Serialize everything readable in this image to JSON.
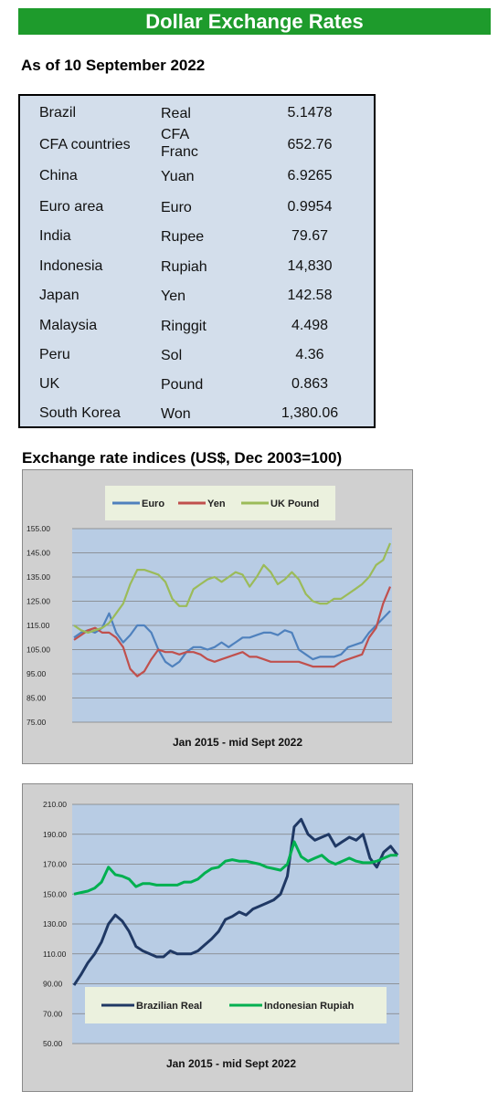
{
  "header": {
    "title": "Dollar Exchange Rates",
    "as_of": "As of 10 September 2022"
  },
  "rates": [
    {
      "country": "Brazil",
      "currency": "Real",
      "value": "5.1478"
    },
    {
      "country": "CFA countries",
      "currency": "CFA Franc",
      "value": "652.76"
    },
    {
      "country": "China",
      "currency": "Yuan",
      "value": "6.9265"
    },
    {
      "country": "Euro area",
      "currency": "Euro",
      "value": "0.9954"
    },
    {
      "country": "India",
      "currency": "Rupee",
      "value": "79.67"
    },
    {
      "country": "Indonesia",
      "currency": "Rupiah",
      "value": "14,830"
    },
    {
      "country": "Japan",
      "currency": "Yen",
      "value": "142.58"
    },
    {
      "country": "Malaysia",
      "currency": "Ringgit",
      "value": "4.498"
    },
    {
      "country": "Peru",
      "currency": "Sol",
      "value": "4.36"
    },
    {
      "country": "UK",
      "currency": "Pound",
      "value": "0.863"
    },
    {
      "country": "South Korea",
      "currency": "Won",
      "value": "1,380.06"
    }
  ],
  "section_title": "Exchange rate indices (US$, Dec 2003=100)",
  "chart_data": [
    {
      "type": "line",
      "xlabel": "Jan 2015 - mid Sept 2022",
      "x_range": [
        "Jan 2015",
        "mid Sept 2022"
      ],
      "ylim": [
        75,
        155
      ],
      "y_ticks": [
        "155.00",
        "145.00",
        "135.00",
        "125.00",
        "115.00",
        "105.00",
        "95.00",
        "85.00",
        "75.00"
      ],
      "legend_position": "top",
      "grid": "horizontal",
      "series": [
        {
          "name": "Euro",
          "color": "#4f81bd",
          "values": [
            110,
            112,
            113,
            112,
            114,
            120,
            112,
            108,
            111,
            115,
            115,
            112,
            105,
            100,
            98,
            100,
            104,
            106,
            106,
            105,
            106,
            108,
            106,
            108,
            110,
            110,
            111,
            112,
            112,
            111,
            113,
            112,
            105,
            103,
            101,
            102,
            102,
            102,
            103,
            106,
            107,
            108,
            112,
            115,
            118,
            121
          ]
        },
        {
          "name": "Yen",
          "color": "#c0504d",
          "values": [
            109,
            111,
            113,
            114,
            112,
            112,
            110,
            106,
            97,
            94,
            96,
            101,
            105,
            104,
            104,
            103,
            104,
            104,
            103,
            101,
            100,
            101,
            102,
            103,
            104,
            102,
            102,
            101,
            100,
            100,
            100,
            100,
            100,
            99,
            98,
            98,
            98,
            98,
            100,
            101,
            102,
            103,
            110,
            114,
            124,
            131
          ]
        },
        {
          "name": "UK Pound",
          "color": "#9bbb59",
          "values": [
            115,
            113,
            112,
            113,
            114,
            116,
            120,
            124,
            132,
            138,
            138,
            137,
            136,
            133,
            126,
            123,
            123,
            130,
            132,
            134,
            135,
            133,
            135,
            137,
            136,
            131,
            135,
            140,
            137,
            132,
            134,
            137,
            134,
            128,
            125,
            124,
            124,
            126,
            126,
            128,
            130,
            132,
            135,
            140,
            142,
            149
          ]
        }
      ]
    },
    {
      "type": "line",
      "xlabel": "Jan 2015 - mid Sept 2022",
      "x_range": [
        "Jan 2015",
        "mid Sept 2022"
      ],
      "ylim": [
        50,
        210
      ],
      "y_ticks": [
        "210.00",
        "190.00",
        "170.00",
        "150.00",
        "130.00",
        "110.00",
        "90.00",
        "70.00",
        "50.00"
      ],
      "legend_position": "bottom",
      "grid": "horizontal",
      "series": [
        {
          "name": "Brazilian Real",
          "color": "#1f3864",
          "values": [
            89,
            96,
            104,
            110,
            118,
            130,
            136,
            132,
            125,
            115,
            112,
            110,
            108,
            108,
            112,
            110,
            110,
            110,
            112,
            116,
            120,
            125,
            133,
            135,
            138,
            136,
            140,
            142,
            144,
            146,
            150,
            162,
            195,
            200,
            190,
            186,
            188,
            190,
            182,
            185,
            188,
            186,
            190,
            174,
            168,
            178,
            182,
            176
          ]
        },
        {
          "name": "Indonesian Rupiah",
          "color": "#00b050",
          "values": [
            150,
            151,
            152,
            154,
            158,
            168,
            163,
            162,
            160,
            155,
            157,
            157,
            156,
            156,
            156,
            156,
            158,
            158,
            160,
            164,
            167,
            168,
            172,
            173,
            172,
            172,
            171,
            170,
            168,
            167,
            166,
            170,
            185,
            175,
            172,
            174,
            176,
            172,
            170,
            172,
            174,
            172,
            171,
            171,
            172,
            174,
            176,
            176
          ]
        }
      ]
    }
  ]
}
